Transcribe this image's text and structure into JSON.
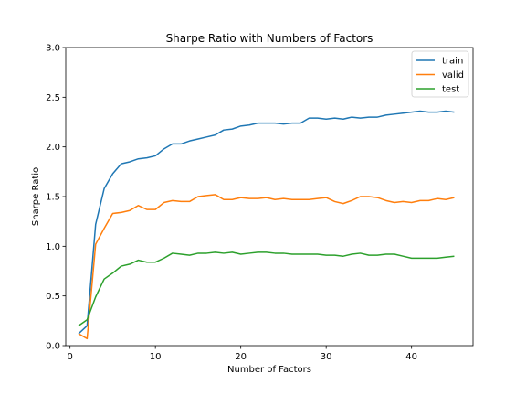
{
  "chart_data": {
    "type": "line",
    "title": "Sharpe Ratio with Numbers of Factors",
    "xlabel": "Number of Factors",
    "ylabel": "Sharpe Ratio",
    "xlim": [
      -0.5,
      47.2
    ],
    "ylim": [
      0.0,
      3.0
    ],
    "xticks": [
      0,
      10,
      20,
      30,
      40
    ],
    "yticks": [
      0.0,
      0.5,
      1.0,
      1.5,
      2.0,
      2.5,
      3.0
    ],
    "grid": false,
    "legend_position": "top-right",
    "x": [
      1,
      2,
      3,
      4,
      5,
      6,
      7,
      8,
      9,
      10,
      11,
      12,
      13,
      14,
      15,
      16,
      17,
      18,
      19,
      20,
      21,
      22,
      23,
      24,
      25,
      26,
      27,
      28,
      29,
      30,
      31,
      32,
      33,
      34,
      35,
      36,
      37,
      38,
      39,
      40,
      41,
      42,
      43,
      44,
      45
    ],
    "series": [
      {
        "name": "train",
        "color": "#1f77b4",
        "values": [
          0.12,
          0.2,
          1.22,
          1.58,
          1.73,
          1.83,
          1.85,
          1.88,
          1.89,
          1.91,
          1.98,
          2.03,
          2.03,
          2.06,
          2.08,
          2.1,
          2.12,
          2.17,
          2.18,
          2.21,
          2.22,
          2.24,
          2.24,
          2.24,
          2.23,
          2.24,
          2.24,
          2.29,
          2.29,
          2.28,
          2.29,
          2.28,
          2.3,
          2.29,
          2.3,
          2.3,
          2.32,
          2.33,
          2.34,
          2.35,
          2.36,
          2.35,
          2.35,
          2.36,
          2.35
        ]
      },
      {
        "name": "valid",
        "color": "#ff7f0e",
        "values": [
          0.12,
          0.07,
          1.02,
          1.18,
          1.33,
          1.34,
          1.36,
          1.41,
          1.37,
          1.37,
          1.44,
          1.46,
          1.45,
          1.45,
          1.5,
          1.51,
          1.52,
          1.47,
          1.47,
          1.49,
          1.48,
          1.48,
          1.49,
          1.47,
          1.48,
          1.47,
          1.47,
          1.47,
          1.48,
          1.49,
          1.45,
          1.43,
          1.46,
          1.5,
          1.5,
          1.49,
          1.46,
          1.44,
          1.45,
          1.44,
          1.46,
          1.46,
          1.48,
          1.47,
          1.49
        ]
      },
      {
        "name": "test",
        "color": "#2ca02c",
        "values": [
          0.2,
          0.26,
          0.49,
          0.67,
          0.73,
          0.8,
          0.82,
          0.86,
          0.84,
          0.84,
          0.88,
          0.93,
          0.92,
          0.91,
          0.93,
          0.93,
          0.94,
          0.93,
          0.94,
          0.92,
          0.93,
          0.94,
          0.94,
          0.93,
          0.93,
          0.92,
          0.92,
          0.92,
          0.92,
          0.91,
          0.91,
          0.9,
          0.92,
          0.93,
          0.91,
          0.91,
          0.92,
          0.92,
          0.9,
          0.88,
          0.88,
          0.88,
          0.88,
          0.89,
          0.9
        ]
      }
    ]
  }
}
